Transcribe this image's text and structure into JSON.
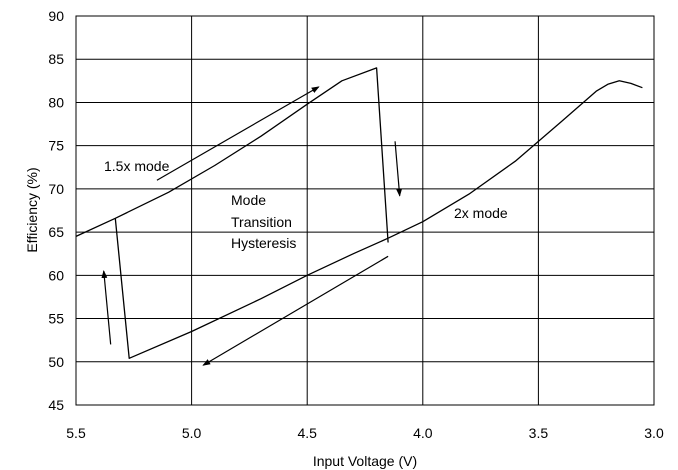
{
  "chart_data": {
    "type": "line",
    "title": "",
    "xlabel": "Input Voltage (V)",
    "ylabel": "Efficiency (%)",
    "xlim": [
      5.5,
      3.0
    ],
    "ylim": [
      45,
      90
    ],
    "x_reversed": true,
    "grid": true,
    "legend": "none",
    "x_ticks": [
      5.5,
      5.0,
      4.5,
      4.0,
      3.5,
      3.0
    ],
    "x_tick_labels": [
      "5.5",
      "5.0",
      "4.5",
      "4.0",
      "3.5",
      "3.0"
    ],
    "y_ticks": [
      45,
      50,
      55,
      60,
      65,
      70,
      75,
      80,
      85,
      90
    ],
    "y_tick_labels": [
      "45",
      "50",
      "55",
      "60",
      "65",
      "70",
      "75",
      "80",
      "85",
      "90"
    ],
    "series": [
      {
        "x": [
          5.5,
          5.33,
          5.1,
          4.9,
          4.7,
          4.5,
          4.35,
          4.2,
          4.15
        ],
        "y": [
          64.5,
          66.6,
          69.6,
          72.7,
          76.1,
          79.8,
          82.5,
          84.0,
          63.8
        ]
      },
      {
        "x": [
          5.33,
          5.27,
          5.0,
          4.7,
          4.5,
          4.3,
          4.15,
          4.0,
          3.8,
          3.6,
          3.4,
          3.25,
          3.2,
          3.15,
          3.1,
          3.05
        ],
        "y": [
          66.6,
          50.4,
          53.5,
          57.3,
          60.0,
          62.5,
          64.3,
          66.2,
          69.4,
          73.2,
          77.8,
          81.3,
          82.1,
          82.5,
          82.2,
          81.7
        ]
      }
    ],
    "annotations": {
      "mode_1_5x": "1.5x mode",
      "mode_2x": "2x mode",
      "hysteresis_line1": "Mode",
      "hysteresis_line2": "Transition",
      "hysteresis_line3": "Hysteresis"
    },
    "arrows": [
      {
        "from": [
          5.35,
          52.0
        ],
        "to": [
          5.38,
          60.5
        ]
      },
      {
        "from": [
          5.15,
          71.0
        ],
        "to": [
          4.45,
          81.8
        ]
      },
      {
        "from": [
          4.12,
          75.5
        ],
        "to": [
          4.1,
          69.2
        ]
      },
      {
        "from": [
          4.15,
          62.2
        ],
        "to": [
          4.95,
          49.6
        ]
      }
    ]
  }
}
